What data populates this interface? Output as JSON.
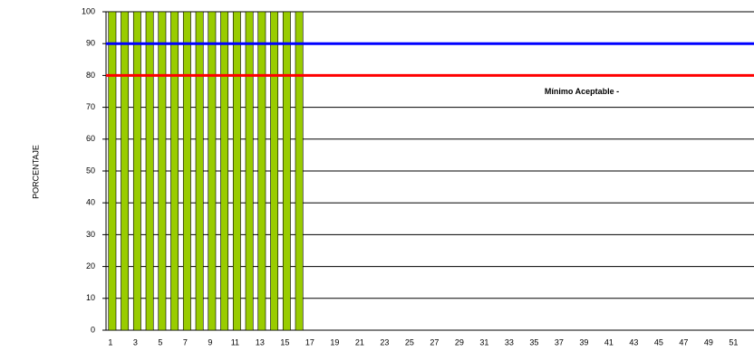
{
  "chart_data": {
    "type": "bar",
    "y_label": "PORCENTAJE",
    "categories": [
      "1",
      null,
      "3",
      null,
      "5",
      null,
      "7",
      null,
      "9",
      null,
      "11",
      null,
      "13",
      null,
      "15",
      null,
      "17",
      null,
      "19",
      null,
      "21",
      null,
      "23",
      null,
      "25",
      null,
      "27",
      null,
      "29",
      null,
      "31",
      null,
      "33",
      null,
      "35",
      null,
      "37",
      null,
      "39",
      null,
      "41",
      null,
      "43",
      null,
      "45",
      null,
      "47",
      null,
      "49",
      null,
      "51",
      null
    ],
    "values": [
      100,
      100,
      100,
      100,
      100,
      100,
      100,
      100,
      100,
      100,
      100,
      100,
      100,
      100,
      100,
      100,
      null,
      null,
      null,
      null,
      null,
      null,
      null,
      null,
      null,
      null,
      null,
      null,
      null,
      null,
      null,
      null,
      null,
      null,
      null,
      null,
      null,
      null,
      null,
      null,
      null,
      null,
      null,
      null,
      null,
      null,
      null,
      null,
      null,
      null,
      null,
      null
    ],
    "color": "#99cc00",
    "ylim": [
      0,
      100
    ],
    "yticks": [
      0,
      10,
      20,
      30,
      40,
      50,
      60,
      70,
      80,
      90,
      100
    ],
    "grid": true,
    "reference_lines": [
      {
        "value": 90,
        "color": "#0000ff"
      },
      {
        "value": 80,
        "color": "#ff0000",
        "label": "Mínimo Aceptable -"
      }
    ]
  }
}
